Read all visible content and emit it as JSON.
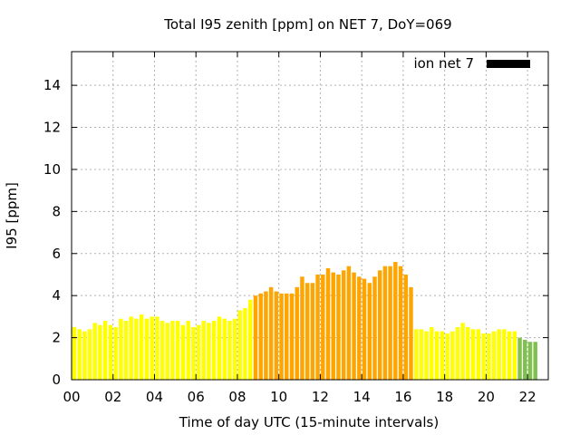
{
  "chart_data": {
    "type": "bar",
    "title": "Total I95 zenith [ppm] on NET 7, DoY=069",
    "xlabel": "Time of day UTC (15-minute intervals)",
    "ylabel": "I95 [ppm]",
    "xlim": [
      0,
      23
    ],
    "ylim": [
      0,
      15.6
    ],
    "x_ticks": [
      "00",
      "02",
      "04",
      "06",
      "08",
      "10",
      "12",
      "14",
      "16",
      "18",
      "20",
      "22"
    ],
    "y_ticks": [
      "0",
      "2",
      "4",
      "6",
      "8",
      "10",
      "12",
      "14"
    ],
    "grid": true,
    "legend_position": "top-right",
    "legend": [
      {
        "label": "ion net 7",
        "color": "#000000"
      }
    ],
    "interval_hours": 0.25,
    "colors": {
      "low": "#ffff00",
      "mid": "#ffa500",
      "ok": "#7fc04f",
      "grid": "#b0b0b0"
    },
    "values": [
      2.5,
      2.4,
      2.3,
      2.4,
      2.7,
      2.6,
      2.8,
      2.6,
      2.5,
      2.9,
      2.8,
      3.0,
      2.9,
      3.1,
      2.9,
      3.0,
      3.0,
      2.8,
      2.7,
      2.8,
      2.8,
      2.6,
      2.8,
      2.5,
      2.6,
      2.8,
      2.7,
      2.8,
      3.0,
      2.9,
      2.8,
      2.9,
      3.3,
      3.4,
      3.8,
      4.0,
      4.1,
      4.2,
      4.4,
      4.2,
      4.1,
      4.1,
      4.1,
      4.4,
      4.9,
      4.6,
      4.6,
      5.0,
      5.0,
      5.3,
      5.1,
      5.0,
      5.2,
      5.4,
      5.1,
      4.9,
      4.8,
      4.6,
      4.9,
      5.2,
      5.4,
      5.4,
      5.6,
      5.4,
      5.0,
      4.4,
      2.4,
      2.4,
      2.3,
      2.5,
      2.3,
      2.3,
      2.2,
      2.3,
      2.5,
      2.7,
      2.5,
      2.4,
      2.4,
      2.2,
      2.2,
      2.3,
      2.4,
      2.4,
      2.3,
      2.3,
      2.0,
      1.9,
      1.8,
      1.8
    ],
    "bar_color_class": [
      "low",
      "low",
      "low",
      "low",
      "low",
      "low",
      "low",
      "low",
      "low",
      "low",
      "low",
      "low",
      "low",
      "low",
      "low",
      "low",
      "low",
      "low",
      "low",
      "low",
      "low",
      "low",
      "low",
      "low",
      "low",
      "low",
      "low",
      "low",
      "low",
      "low",
      "low",
      "low",
      "low",
      "low",
      "low",
      "mid",
      "mid",
      "mid",
      "mid",
      "mid",
      "mid",
      "mid",
      "mid",
      "mid",
      "mid",
      "mid",
      "mid",
      "mid",
      "mid",
      "mid",
      "mid",
      "mid",
      "mid",
      "mid",
      "mid",
      "mid",
      "mid",
      "mid",
      "mid",
      "mid",
      "mid",
      "mid",
      "mid",
      "mid",
      "mid",
      "mid",
      "low",
      "low",
      "low",
      "low",
      "low",
      "low",
      "low",
      "low",
      "low",
      "low",
      "low",
      "low",
      "low",
      "low",
      "low",
      "low",
      "low",
      "low",
      "low",
      "low",
      "ok",
      "ok",
      "ok",
      "ok"
    ]
  }
}
